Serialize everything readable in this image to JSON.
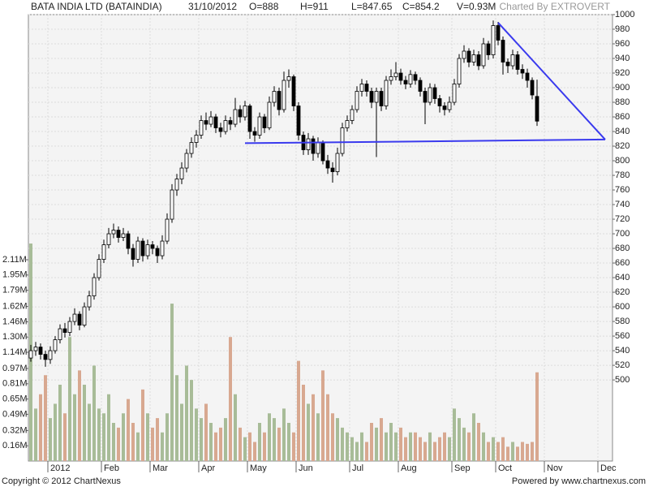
{
  "chart_data": {
    "type": "candlestick",
    "title": "BATA INDIA LTD (BATAINDIA)",
    "info": [
      "31/10/2012",
      "O=888",
      "H=911",
      "L=847.65",
      "C=854.2",
      "V=0.93M"
    ],
    "credit": "Charted By EXTROVERT",
    "footer_left": "Copyright © 2012 ChartNexus",
    "footer_right": "Powered by www.chartnexus.com",
    "categories": [
      null,
      null,
      null,
      null,
      "2012",
      null,
      null,
      null,
      null,
      null,
      null,
      null,
      null,
      null,
      null,
      "Feb",
      null,
      null,
      null,
      null,
      null,
      null,
      null,
      null,
      null,
      "Mar",
      null,
      null,
      null,
      null,
      null,
      null,
      null,
      null,
      null,
      "Apr",
      null,
      null,
      null,
      null,
      null,
      null,
      null,
      null,
      null,
      "May",
      null,
      null,
      null,
      null,
      null,
      null,
      null,
      null,
      null,
      "Jun",
      null,
      null,
      null,
      null,
      null,
      null,
      null,
      null,
      null,
      null,
      "Jul",
      null,
      null,
      null,
      null,
      null,
      null,
      null,
      null,
      null,
      "Aug",
      null,
      null,
      null,
      null,
      null,
      null,
      null,
      null,
      null,
      null,
      "Sep",
      null,
      null,
      null,
      null,
      null,
      null,
      null,
      null,
      "Oct",
      null,
      null,
      null,
      null,
      null,
      null,
      null,
      null,
      null,
      "Nov",
      null,
      null,
      null,
      null,
      null,
      null,
      null,
      null,
      null,
      null,
      "Dec",
      null,
      null
    ],
    "candles": [
      [
        530,
        548,
        525,
        540
      ],
      [
        540,
        552,
        533,
        545
      ],
      [
        545,
        550,
        528,
        535
      ],
      [
        535,
        540,
        518,
        528
      ],
      [
        528,
        546,
        522,
        540
      ],
      [
        540,
        560,
        536,
        555
      ],
      [
        555,
        576,
        550,
        570
      ],
      [
        570,
        578,
        558,
        565
      ],
      [
        565,
        586,
        560,
        580
      ],
      [
        580,
        598,
        575,
        590
      ],
      [
        590,
        594,
        568,
        575
      ],
      [
        575,
        606,
        572,
        600
      ],
      [
        600,
        622,
        595,
        615
      ],
      [
        615,
        646,
        610,
        640
      ],
      [
        640,
        672,
        636,
        665
      ],
      [
        665,
        692,
        660,
        685
      ],
      [
        685,
        708,
        680,
        700
      ],
      [
        700,
        714,
        694,
        705
      ],
      [
        705,
        710,
        688,
        695
      ],
      [
        695,
        708,
        690,
        700
      ],
      [
        700,
        704,
        672,
        680
      ],
      [
        680,
        686,
        655,
        665
      ],
      [
        665,
        696,
        660,
        690
      ],
      [
        690,
        694,
        662,
        670
      ],
      [
        670,
        692,
        665,
        685
      ],
      [
        685,
        690,
        672,
        680
      ],
      [
        680,
        684,
        660,
        670
      ],
      [
        670,
        698,
        665,
        690
      ],
      [
        690,
        728,
        686,
        720
      ],
      [
        720,
        768,
        715,
        760
      ],
      [
        760,
        782,
        752,
        775
      ],
      [
        775,
        798,
        768,
        790
      ],
      [
        790,
        816,
        784,
        810
      ],
      [
        810,
        832,
        804,
        825
      ],
      [
        825,
        842,
        818,
        835
      ],
      [
        835,
        862,
        830,
        855
      ],
      [
        855,
        866,
        842,
        850
      ],
      [
        850,
        868,
        846,
        860
      ],
      [
        860,
        864,
        838,
        845
      ],
      [
        845,
        852,
        832,
        840
      ],
      [
        840,
        862,
        836,
        855
      ],
      [
        855,
        860,
        842,
        850
      ],
      [
        850,
        886,
        846,
        870
      ],
      [
        870,
        876,
        852,
        860
      ],
      [
        860,
        882,
        855,
        875
      ],
      [
        875,
        878,
        830,
        840
      ],
      [
        840,
        846,
        826,
        835
      ],
      [
        835,
        866,
        830,
        860
      ],
      [
        860,
        864,
        838,
        845
      ],
      [
        845,
        888,
        842,
        880
      ],
      [
        880,
        902,
        874,
        895
      ],
      [
        895,
        900,
        862,
        870
      ],
      [
        870,
        922,
        866,
        910
      ],
      [
        910,
        925,
        900,
        915
      ],
      [
        915,
        918,
        868,
        875
      ],
      [
        875,
        880,
        828,
        835
      ],
      [
        835,
        840,
        808,
        815
      ],
      [
        815,
        838,
        808,
        830
      ],
      [
        830,
        834,
        800,
        810
      ],
      [
        810,
        832,
        804,
        825
      ],
      [
        825,
        828,
        795,
        800
      ],
      [
        800,
        808,
        782,
        790
      ],
      [
        790,
        798,
        770,
        785
      ],
      [
        785,
        818,
        780,
        810
      ],
      [
        810,
        852,
        806,
        845
      ],
      [
        845,
        862,
        840,
        855
      ],
      [
        855,
        876,
        850,
        870
      ],
      [
        870,
        902,
        866,
        895
      ],
      [
        895,
        912,
        888,
        905
      ],
      [
        905,
        910,
        888,
        895
      ],
      [
        895,
        900,
        872,
        880
      ],
      [
        880,
        900,
        805,
        895
      ],
      [
        895,
        900,
        868,
        875
      ],
      [
        875,
        916,
        870,
        910
      ],
      [
        910,
        925,
        904,
        915
      ],
      [
        915,
        935,
        910,
        920
      ],
      [
        920,
        926,
        904,
        910
      ],
      [
        910,
        916,
        898,
        905
      ],
      [
        905,
        924,
        900,
        918
      ],
      [
        918,
        922,
        904,
        910
      ],
      [
        910,
        914,
        888,
        895
      ],
      [
        895,
        900,
        850,
        880
      ],
      [
        880,
        906,
        876,
        900
      ],
      [
        900,
        905,
        878,
        885
      ],
      [
        885,
        890,
        866,
        875
      ],
      [
        875,
        880,
        862,
        870
      ],
      [
        870,
        888,
        866,
        880
      ],
      [
        880,
        912,
        876,
        905
      ],
      [
        905,
        946,
        900,
        940
      ],
      [
        940,
        958,
        934,
        950
      ],
      [
        950,
        954,
        928,
        935
      ],
      [
        935,
        952,
        930,
        945
      ],
      [
        945,
        950,
        924,
        930
      ],
      [
        930,
        968,
        926,
        960
      ],
      [
        960,
        964,
        938,
        945
      ],
      [
        945,
        992,
        940,
        985
      ],
      [
        985,
        990,
        958,
        965
      ],
      [
        965,
        970,
        918,
        935
      ],
      [
        935,
        940,
        920,
        930
      ],
      [
        930,
        952,
        925,
        945
      ],
      [
        945,
        950,
        918,
        925
      ],
      [
        925,
        932,
        912,
        920
      ],
      [
        920,
        926,
        900,
        910
      ],
      [
        910,
        914,
        884,
        890
      ],
      [
        888,
        911,
        847.65,
        854.2
      ],
      null,
      null,
      null,
      null,
      null,
      null,
      null,
      null,
      null,
      null,
      null,
      null,
      null,
      null,
      null
    ],
    "volume": [
      2.28,
      0.55,
      0.7,
      0.9,
      0.45,
      0.6,
      0.8,
      0.5,
      1.3,
      0.7,
      0.95,
      0.8,
      0.6,
      1.0,
      0.55,
      0.5,
      0.7,
      0.4,
      0.35,
      0.5,
      0.65,
      0.4,
      0.3,
      0.75,
      0.5,
      0.35,
      0.45,
      0.3,
      0.5,
      1.65,
      0.9,
      0.6,
      1.0,
      0.85,
      0.55,
      0.45,
      0.6,
      0.4,
      0.3,
      0.35,
      0.45,
      1.3,
      0.7,
      0.35,
      0.25,
      0.3,
      0.2,
      0.4,
      0.3,
      0.5,
      0.45,
      0.35,
      0.55,
      0.4,
      0.3,
      1.05,
      0.8,
      0.6,
      0.7,
      0.5,
      0.95,
      0.7,
      0.5,
      0.45,
      0.35,
      0.3,
      0.25,
      0.2,
      0.3,
      0.2,
      0.4,
      0.35,
      0.45,
      0.3,
      0.4,
      0.3,
      0.35,
      0.25,
      0.3,
      0.3,
      0.25,
      0.2,
      0.3,
      0.2,
      0.25,
      0.3,
      0.25,
      0.55,
      0.45,
      0.35,
      0.3,
      0.5,
      0.4,
      0.3,
      0.2,
      0.25,
      0.2,
      0.25,
      0.15,
      0.2,
      0.15,
      0.2,
      0.18,
      0.2,
      0.93,
      null,
      null,
      null,
      null,
      null,
      null,
      null,
      null,
      null,
      null,
      null,
      null,
      null,
      null,
      null
    ],
    "up_color": "#a8bc98",
    "down_color": "#d8a890",
    "ylim": [
      389,
      1000
    ],
    "yticks": [
      500,
      520,
      540,
      560,
      580,
      600,
      620,
      640,
      660,
      680,
      700,
      720,
      740,
      760,
      780,
      800,
      820,
      840,
      860,
      880,
      900,
      920,
      940,
      960,
      980,
      1000
    ],
    "y2lim": [
      0,
      4.68
    ],
    "y2ticks": [
      {
        "value": 0.16,
        "label": "0.16M"
      },
      {
        "value": 0.32,
        "label": "0.32M"
      },
      {
        "value": 0.49,
        "label": "0.49M"
      },
      {
        "value": 0.65,
        "label": "0.65M"
      },
      {
        "value": 0.81,
        "label": "0.81M"
      },
      {
        "value": 0.97,
        "label": "0.97M"
      },
      {
        "value": 1.14,
        "label": "1.14M"
      },
      {
        "value": 1.3,
        "label": "1.30M"
      },
      {
        "value": 1.46,
        "label": "1.46M"
      },
      {
        "value": 1.62,
        "label": "1.62M"
      },
      {
        "value": 1.79,
        "label": "1.79M"
      },
      {
        "value": 1.95,
        "label": "1.95M"
      },
      {
        "value": 2.11,
        "label": "2.11M"
      }
    ],
    "trendlines": [
      {
        "color": "#3a3aee",
        "points": [
          [
            44,
            824
          ],
          [
            118,
            829
          ]
        ]
      },
      {
        "color": "#3a3aee",
        "points": [
          [
            96,
            989
          ],
          [
            118,
            829
          ]
        ]
      }
    ],
    "grid": true
  }
}
